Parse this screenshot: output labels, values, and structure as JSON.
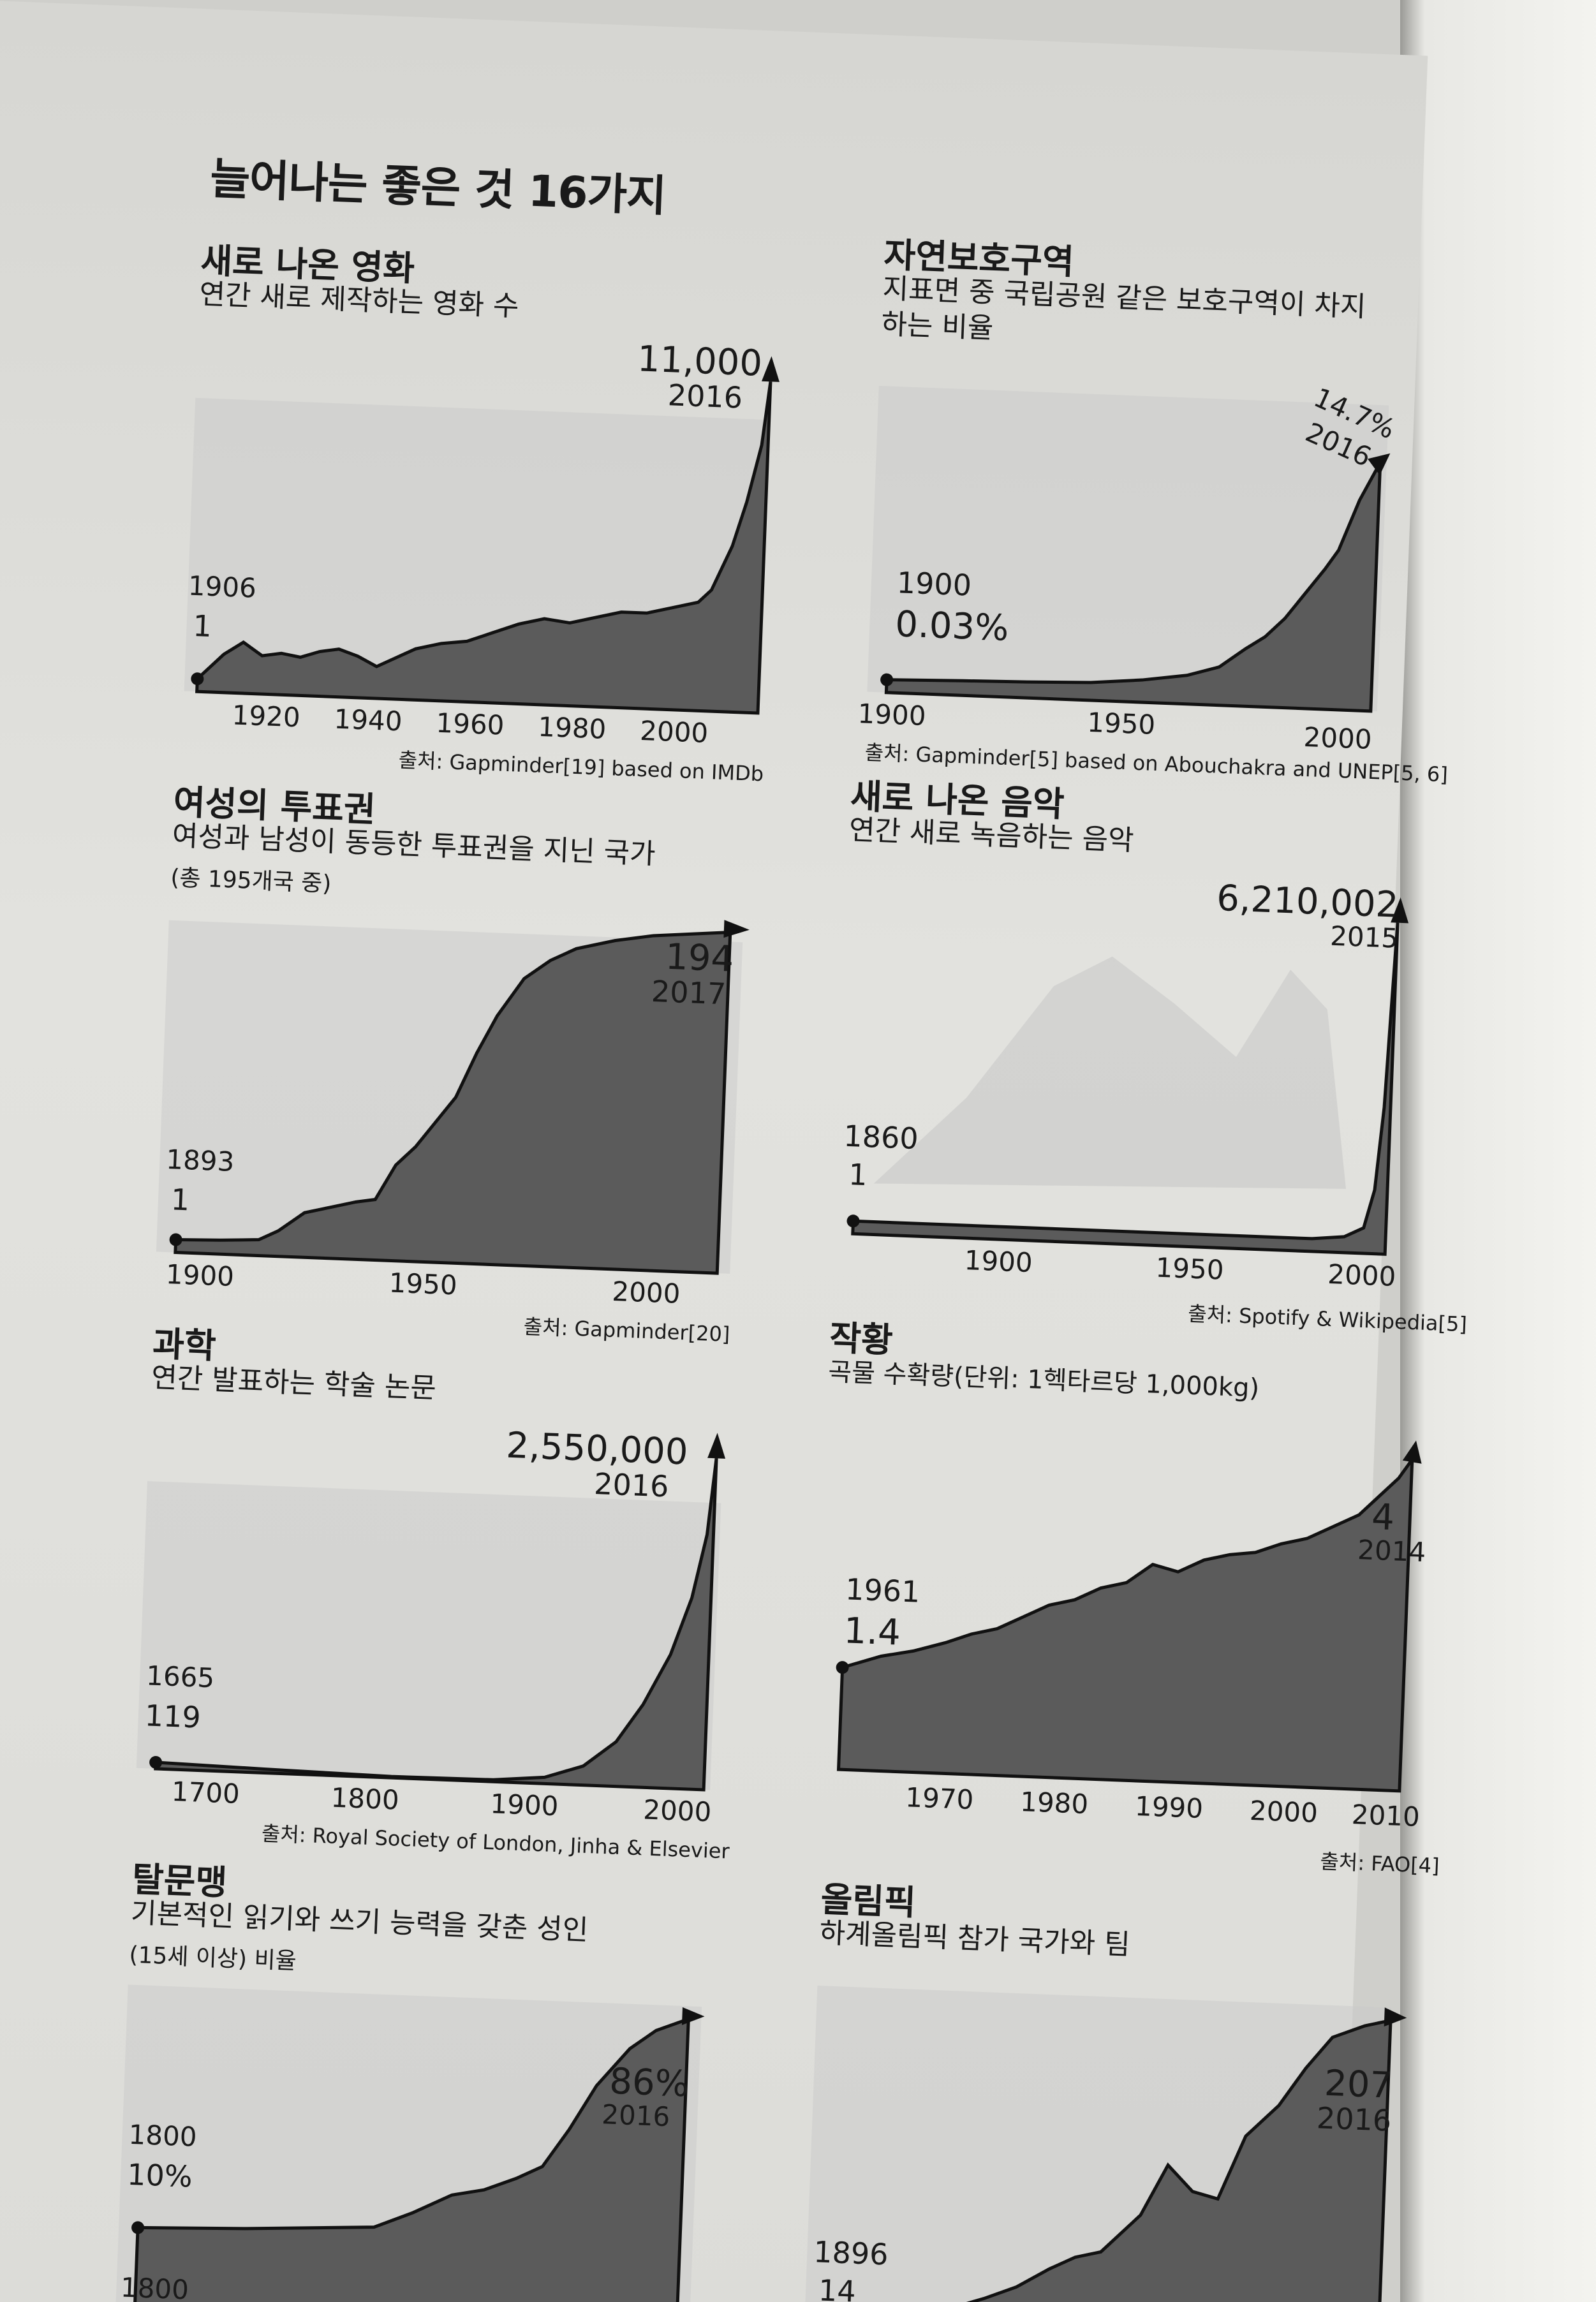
{
  "page": {
    "title": "늘어나는 좋은 것 16가지"
  },
  "colors": {
    "fill": "#555555",
    "line": "#111111",
    "ghost": "#bdbdbd"
  },
  "panels": [
    {
      "id": "movies",
      "title": "새로 나온 영화",
      "subtitle": "연간 새로 제작하는 영화 수",
      "start_year": "1906",
      "start_value": "1",
      "end_value": "11,000",
      "end_year": "2016",
      "ticks": [
        "1920",
        "1940",
        "1960",
        "1980",
        "2000"
      ],
      "source": "출처: Gapminder[19] based on IMDb"
    },
    {
      "id": "protected-areas",
      "title": "자연보호구역",
      "subtitle": "지표면 중 국립공원 같은 보호구역이 차지하는 비율",
      "start_year": "1900",
      "start_value": "0.03%",
      "end_value": "14.7%",
      "end_year": "2016",
      "ticks": [
        "1900",
        "1950",
        "2000"
      ],
      "source": "출처: Gapminder[5] based on Abouchakra and UNEP[5, 6]"
    },
    {
      "id": "women-vote",
      "title": "여성의 투표권",
      "subtitle": "여성과 남성이 동등한 투표권을 지닌 국가",
      "note": "(총 195개국 중)",
      "start_year": "1893",
      "start_value": "1",
      "end_value": "194",
      "end_year": "2017",
      "ticks": [
        "1900",
        "1950",
        "2000"
      ],
      "source": "출처: Gapminder[20]"
    },
    {
      "id": "new-music",
      "title": "새로 나온 음악",
      "subtitle": "연간 새로 녹음하는 음악",
      "start_year": "1860",
      "start_value": "1",
      "end_value": "6,210,002",
      "end_year": "2015",
      "ticks": [
        "1900",
        "1950",
        "2000"
      ],
      "source": "출처: Spotify & Wikipedia[5]"
    },
    {
      "id": "science",
      "title": "과학",
      "subtitle": "연간 발표하는 학술 논문",
      "start_year": "1665",
      "start_value": "119",
      "end_value": "2,550,000",
      "end_year": "2016",
      "ticks": [
        "1700",
        "1800",
        "1900",
        "2000"
      ],
      "source": "출처: Royal Society of London, Jinha & Elsevier"
    },
    {
      "id": "harvest",
      "title": "작황",
      "subtitle": "곡물 수확량(단위: 1헥타르당 1,000kg)",
      "start_year": "1961",
      "start_value": "1.4",
      "end_value": "4",
      "end_year": "2014",
      "ticks": [
        "1970",
        "1980",
        "1990",
        "2000",
        "2010"
      ],
      "source": "출처: FAO[4]"
    },
    {
      "id": "literacy",
      "title": "탈문맹",
      "subtitle": "기본적인 읽기와 쓰기 능력을 갖춘 성인",
      "note": "(15세 이상) 비율",
      "start_year": "1800",
      "start_value": "10%",
      "end_value": "86%",
      "end_year": "2016",
      "ticks": [
        "1800"
      ],
      "source": ""
    },
    {
      "id": "olympics",
      "title": "올림픽",
      "subtitle": "하계올림픽 참가 국가와 팀",
      "start_year": "1896",
      "start_value": "14",
      "end_value": "207",
      "end_year": "2016",
      "ticks": [],
      "source": ""
    }
  ]
}
